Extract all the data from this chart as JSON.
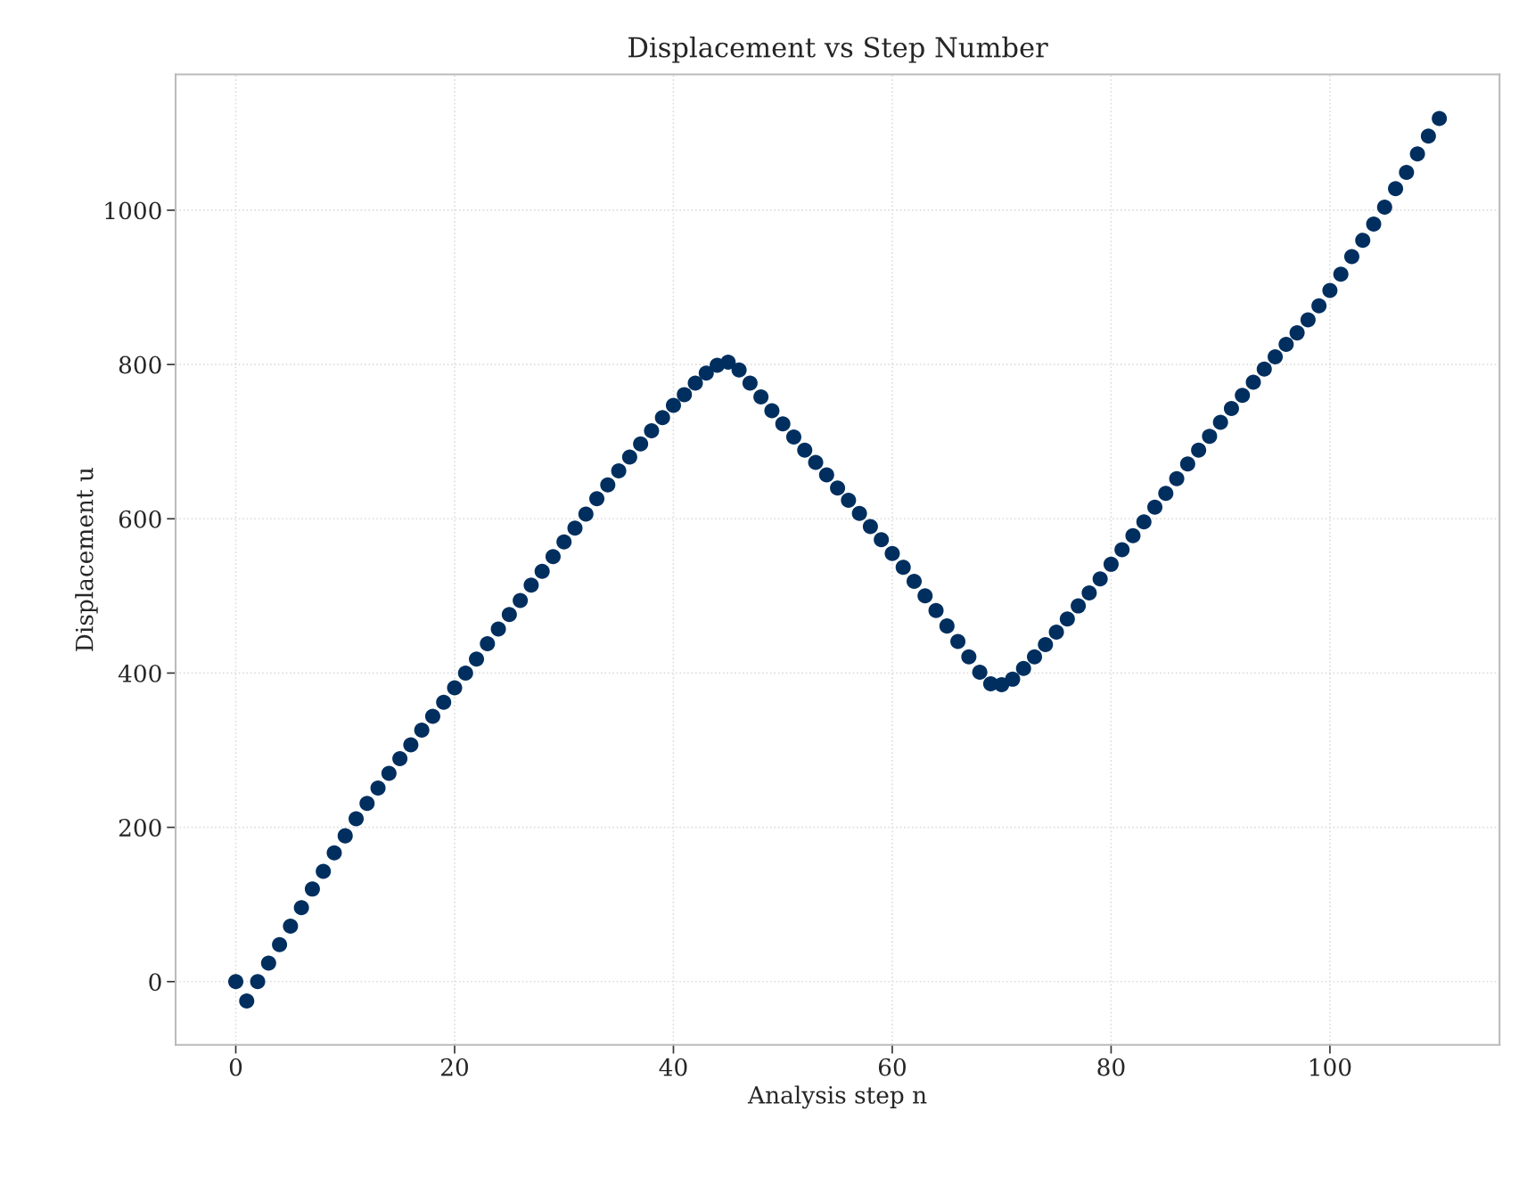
{
  "chart_data": {
    "type": "scatter",
    "title": "Displacement vs Step Number",
    "xlabel": "Analysis step n",
    "ylabel": "Displacement u",
    "x": [
      0,
      1,
      2,
      3,
      4,
      5,
      6,
      7,
      8,
      9,
      10,
      11,
      12,
      13,
      14,
      15,
      16,
      17,
      18,
      19,
      20,
      21,
      22,
      23,
      24,
      25,
      26,
      27,
      28,
      29,
      30,
      31,
      32,
      33,
      34,
      35,
      36,
      37,
      38,
      39,
      40,
      41,
      42,
      43,
      44,
      45,
      46,
      47,
      48,
      49,
      50,
      51,
      52,
      53,
      54,
      55,
      56,
      57,
      58,
      59,
      60,
      61,
      62,
      63,
      64,
      65,
      66,
      67,
      68,
      69,
      70,
      71,
      72,
      73,
      74,
      75,
      76,
      77,
      78,
      79,
      80,
      81,
      82,
      83,
      84,
      85,
      86,
      87,
      88,
      89,
      90,
      91,
      92,
      93,
      94,
      95,
      96,
      97,
      98,
      99,
      100,
      101,
      102,
      103,
      104,
      105,
      106,
      107,
      108,
      109,
      110
    ],
    "series": [
      {
        "color": "#002f5f",
        "values": [
          0,
          -25,
          0,
          24,
          48,
          72,
          96,
          120,
          143,
          167,
          189,
          211,
          231,
          251,
          270,
          289,
          307,
          326,
          344,
          362,
          381,
          400,
          418,
          438,
          457,
          476,
          494,
          514,
          532,
          551,
          570,
          588,
          606,
          626,
          644,
          662,
          680,
          697,
          714,
          731,
          747,
          761,
          776,
          789,
          799,
          803,
          793,
          776,
          758,
          740,
          723,
          706,
          689,
          673,
          657,
          640,
          624,
          607,
          590,
          573,
          555,
          537,
          519,
          500,
          481,
          461,
          441,
          421,
          401,
          386,
          385,
          392,
          406,
          421,
          437,
          453,
          470,
          487,
          504,
          522,
          541,
          560,
          578,
          596,
          615,
          633,
          652,
          671,
          689,
          707,
          725,
          743,
          760,
          777,
          794,
          810,
          826,
          841,
          858,
          876,
          896,
          917,
          940,
          961,
          982,
          1004,
          1028,
          1049,
          1073,
          1096,
          1119
        ]
      }
    ],
    "xlim": [
      -5.5,
      115.5
    ],
    "ylim": [
      -82,
      1176
    ],
    "xticks": [
      0,
      20,
      40,
      60,
      80,
      100
    ],
    "yticks": [
      0,
      200,
      400,
      600,
      800,
      1000
    ],
    "grid": true,
    "marker": "circle",
    "legend": false
  }
}
